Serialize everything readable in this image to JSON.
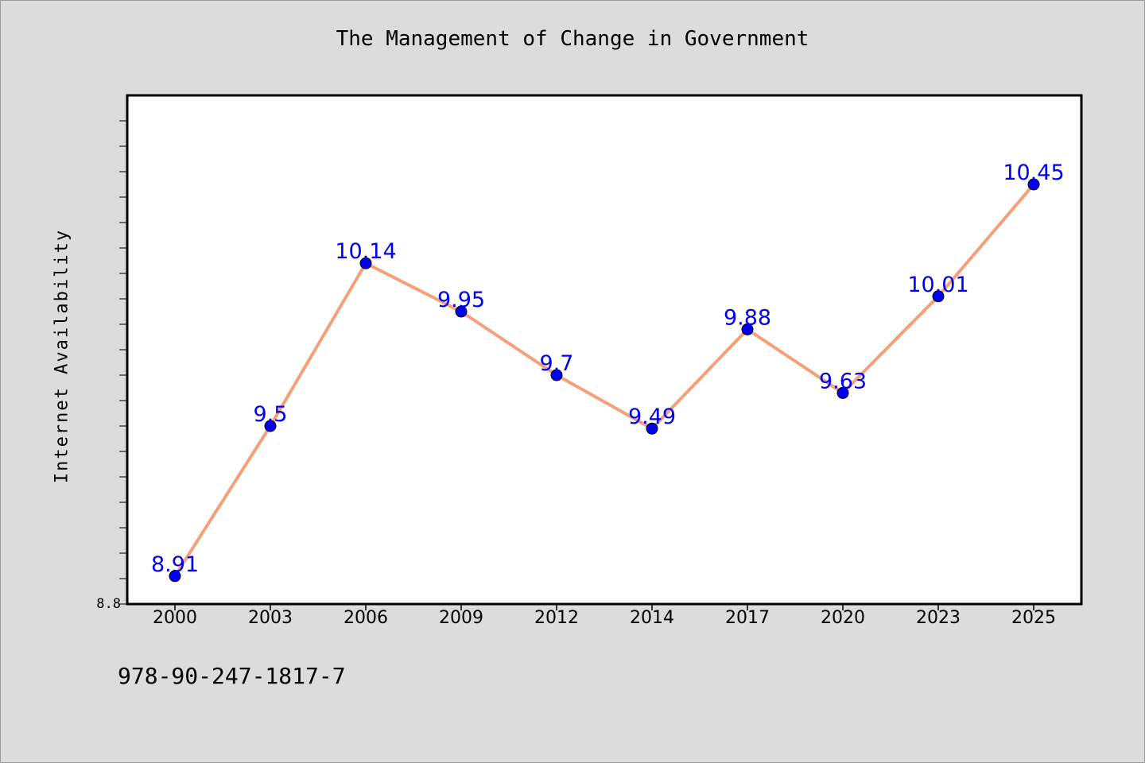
{
  "chart_data": {
    "type": "line",
    "title": "The Management of Change in Government",
    "xlabel": "",
    "ylabel": "Internet Availability",
    "categories": [
      "2000",
      "2003",
      "2006",
      "2009",
      "2012",
      "2014",
      "2017",
      "2020",
      "2023",
      "2025"
    ],
    "series": [
      {
        "values": [
          8.91,
          9.5,
          10.14,
          9.95,
          9.7,
          9.49,
          9.88,
          9.63,
          10.01,
          10.45
        ]
      }
    ],
    "data_labels": [
      "8.91",
      "9.5",
      "10.14",
      "9.95",
      "9.7",
      "9.49",
      "9.88",
      "9.63",
      "10.01",
      "10.45"
    ],
    "y_tick_labels": [
      "8.8"
    ],
    "ylim": [
      8.8,
      10.8
    ],
    "grid": false,
    "colors": {
      "line": "#f4a07a",
      "marker": "#0000ee",
      "label": "#0000ee"
    }
  },
  "footnote": "978-90-247-1817-7"
}
